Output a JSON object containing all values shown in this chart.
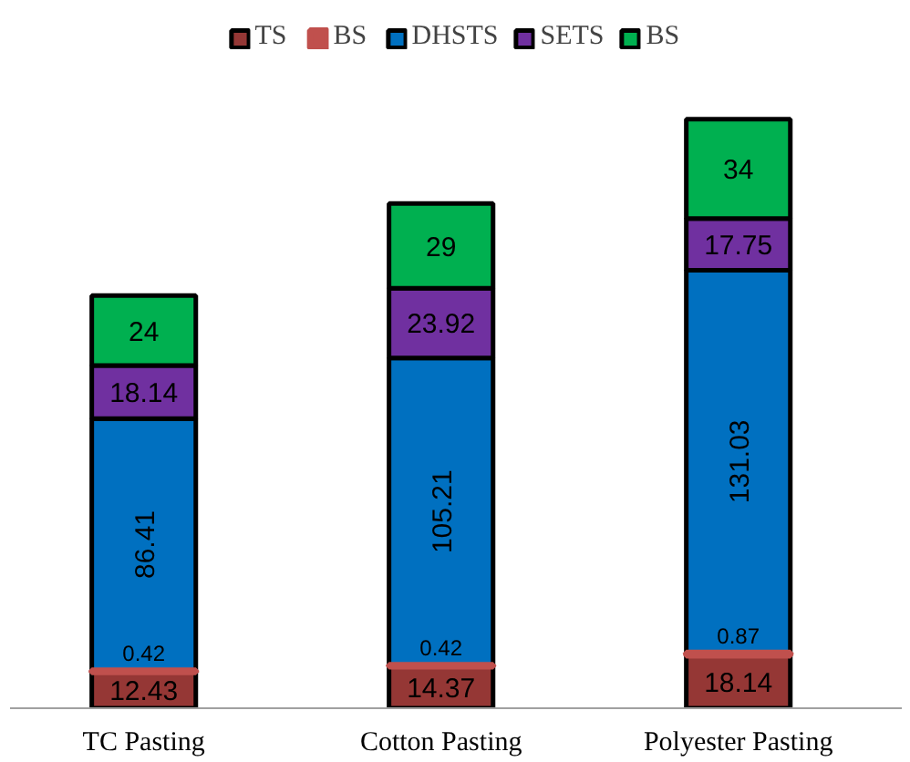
{
  "chart_data": {
    "type": "bar",
    "stacked": true,
    "categories": [
      "TC Pasting",
      "Cotton Pasting",
      "Polyester Pasting"
    ],
    "series": [
      {
        "name": "TS",
        "color": "#953735",
        "values": [
          12.43,
          14.37,
          18.14
        ]
      },
      {
        "name": "BS",
        "color": "#c0504d",
        "values": [
          0.42,
          0.42,
          0.87
        ]
      },
      {
        "name": "DHSTS",
        "color": "#0070c0",
        "values": [
          86.41,
          105.21,
          131.03
        ]
      },
      {
        "name": "SETS",
        "color": "#7030a0",
        "values": [
          18.14,
          23.92,
          17.75
        ]
      },
      {
        "name": "BS",
        "color": "#00b050",
        "values": [
          24,
          29,
          34
        ]
      }
    ],
    "data_labels": true,
    "legend": "top",
    "grid": false
  }
}
